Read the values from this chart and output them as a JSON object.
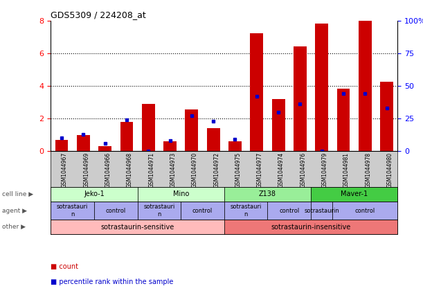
{
  "title": "GDS5309 / 224208_at",
  "samples": [
    "GSM1044967",
    "GSM1044969",
    "GSM1044966",
    "GSM1044968",
    "GSM1044971",
    "GSM1044973",
    "GSM1044970",
    "GSM1044972",
    "GSM1044975",
    "GSM1044977",
    "GSM1044974",
    "GSM1044976",
    "GSM1044979",
    "GSM1044981",
    "GSM1044978",
    "GSM1044980"
  ],
  "red_values": [
    0.7,
    1.0,
    0.3,
    1.8,
    2.9,
    0.6,
    2.55,
    1.4,
    0.6,
    7.2,
    3.2,
    6.4,
    7.8,
    3.85,
    8.0,
    4.25
  ],
  "blue_values_pct": [
    10,
    13,
    6,
    24,
    0,
    8,
    27,
    23,
    9,
    42,
    30,
    36,
    0,
    44,
    44,
    33
  ],
  "ylim_left": [
    0,
    8
  ],
  "ylim_right": [
    0,
    100
  ],
  "yticks_left": [
    0,
    2,
    4,
    6,
    8
  ],
  "yticks_right": [
    0,
    25,
    50,
    75,
    100
  ],
  "bar_color": "#cc0000",
  "dot_color": "#0000cc",
  "sample_bg": "#cccccc",
  "cell_line_colors": [
    "#ccffcc",
    "#ccffcc",
    "#99ee99",
    "#44cc44"
  ],
  "agent_color": "#aaaaee",
  "other_colors": [
    "#ffbbbb",
    "#ee7777"
  ],
  "cell_lines": [
    {
      "label": "Jeko-1",
      "start": 0,
      "end": 3
    },
    {
      "label": "Mino",
      "start": 4,
      "end": 7
    },
    {
      "label": "Z138",
      "start": 8,
      "end": 11
    },
    {
      "label": "Maver-1",
      "start": 12,
      "end": 15
    }
  ],
  "agents": [
    {
      "label": "sotrastauri\nn",
      "start": 0,
      "end": 1
    },
    {
      "label": "control",
      "start": 2,
      "end": 3
    },
    {
      "label": "sotrastauri\nn",
      "start": 4,
      "end": 5
    },
    {
      "label": "control",
      "start": 6,
      "end": 7
    },
    {
      "label": "sotrastauri\nn",
      "start": 8,
      "end": 9
    },
    {
      "label": "control",
      "start": 10,
      "end": 11
    },
    {
      "label": "sotrastaurin",
      "start": 12,
      "end": 12
    },
    {
      "label": "control",
      "start": 13,
      "end": 15
    }
  ],
  "others": [
    {
      "label": "sotrastaurin-sensitive",
      "start": 0,
      "end": 7
    },
    {
      "label": "sotrastaurin-insensitive",
      "start": 8,
      "end": 15
    }
  ],
  "row_labels": [
    "cell line",
    "agent",
    "other"
  ],
  "legend_items": [
    {
      "label": "count",
      "color": "#cc0000"
    },
    {
      "label": "percentile rank within the sample",
      "color": "#0000cc"
    }
  ]
}
